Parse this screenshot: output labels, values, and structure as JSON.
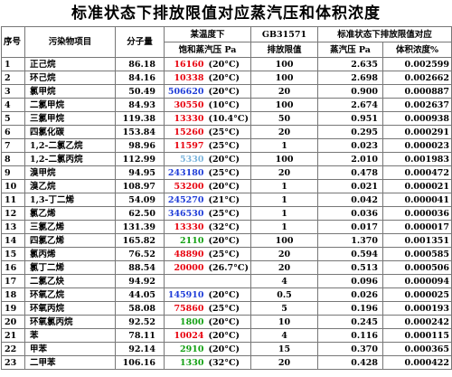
{
  "title": "标准状态下排放限值对应蒸汽压和体积浓度",
  "header": {
    "index": "序号",
    "pollutant": "污染物项目",
    "mw": "分子量",
    "vp_line1": "某温度下",
    "vp_line2": "饱和蒸汽压 Pa",
    "limit_line1": "GB31571",
    "limit_line2": "排放限值",
    "std_group": "标准状态下排放限值对应",
    "std_vp": "蒸汽压 Pa",
    "std_conc": "体积浓度%"
  },
  "colors": {
    "red": "#e8000d",
    "blue": "#1e3cd8",
    "green": "#12a012",
    "lightblue": "#7ab4dc",
    "black": "#000000"
  },
  "rows": [
    {
      "idx": "1",
      "name": "正己烷",
      "mw": "86.18",
      "pv": "16160",
      "pc": "red",
      "pt": "(20°C)",
      "lim": "100",
      "sp": "2.635",
      "cc": "0.002599"
    },
    {
      "idx": "2",
      "name": "环己烷",
      "mw": "84.16",
      "pv": "10338",
      "pc": "red",
      "pt": "(20°C)",
      "lim": "100",
      "sp": "2.698",
      "cc": "0.002662"
    },
    {
      "idx": "3",
      "name": "氯甲烷",
      "mw": "50.49",
      "pv": "506620",
      "pc": "blue",
      "pt": "(20°C)",
      "lim": "20",
      "sp": "0.900",
      "cc": "0.000887"
    },
    {
      "idx": "4",
      "name": "二氯甲烷",
      "mw": "84.93",
      "pv": "30550",
      "pc": "red",
      "pt": "(10°C)",
      "lim": "100",
      "sp": "2.674",
      "cc": "0.002637"
    },
    {
      "idx": "5",
      "name": "三氯甲烷",
      "mw": "119.38",
      "pv": "13330",
      "pc": "red",
      "pt": "(10.4°C)",
      "lim": "50",
      "sp": "0.951",
      "cc": "0.000938"
    },
    {
      "idx": "6",
      "name": "四氯化碳",
      "mw": "153.84",
      "pv": "15260",
      "pc": "red",
      "pt": "(25°C)",
      "lim": "20",
      "sp": "0.295",
      "cc": "0.000291"
    },
    {
      "idx": "7",
      "name": "1,2-二氯乙烷",
      "mw": "98.96",
      "pv": "11597",
      "pc": "red",
      "pt": "(25°C)",
      "lim": "1",
      "sp": "0.023",
      "cc": "0.000023"
    },
    {
      "idx": "8",
      "name": "1,2-二氯丙烷",
      "mw": "112.99",
      "pv": "5330",
      "pc": "lightblue",
      "pt": "(20°C)",
      "lim": "100",
      "sp": "2.010",
      "cc": "0.001983"
    },
    {
      "idx": "9",
      "name": "溴甲烷",
      "mw": "94.95",
      "pv": "243180",
      "pc": "blue",
      "pt": "(25°C)",
      "lim": "20",
      "sp": "0.478",
      "cc": "0.000472"
    },
    {
      "idx": "10",
      "name": "溴乙烷",
      "mw": "108.97",
      "pv": "53200",
      "pc": "red",
      "pt": "(20°C)",
      "lim": "1",
      "sp": "0.021",
      "cc": "0.000021"
    },
    {
      "idx": "11",
      "name": "1,3-丁二烯",
      "mw": "54.09",
      "pv": "245270",
      "pc": "blue",
      "pt": "(21°C)",
      "lim": "1",
      "sp": "0.042",
      "cc": "0.000041"
    },
    {
      "idx": "12",
      "name": "氯乙烯",
      "mw": "62.50",
      "pv": "346530",
      "pc": "blue",
      "pt": "(25°C)",
      "lim": "1",
      "sp": "0.036",
      "cc": "0.000036"
    },
    {
      "idx": "13",
      "name": "三氯乙烯",
      "mw": "131.39",
      "pv": "13330",
      "pc": "red",
      "pt": "(32°C)",
      "lim": "1",
      "sp": "0.017",
      "cc": "0.000017"
    },
    {
      "idx": "14",
      "name": "四氯乙烯",
      "mw": "165.82",
      "pv": "2110",
      "pc": "green",
      "pt": "(20°C)",
      "lim": "100",
      "sp": "1.370",
      "cc": "0.001351"
    },
    {
      "idx": "15",
      "name": "氯丙烯",
      "mw": "76.52",
      "pv": "48890",
      "pc": "red",
      "pt": "(25°C)",
      "lim": "20",
      "sp": "0.594",
      "cc": "0.000585"
    },
    {
      "idx": "16",
      "name": "氯丁二烯",
      "mw": "88.54",
      "pv": "20000",
      "pc": "red",
      "pt": "(26.7°C)",
      "lim": "20",
      "sp": "0.513",
      "cc": "0.000506"
    },
    {
      "idx": "17",
      "name": "二氯乙炔",
      "mw": "94.92",
      "pv": "",
      "pc": "black",
      "pt": "",
      "lim": "4",
      "sp": "0.096",
      "cc": "0.000094"
    },
    {
      "idx": "18",
      "name": "环氧乙烷",
      "mw": "44.05",
      "pv": "145910",
      "pc": "blue",
      "pt": "(20°C)",
      "lim": "0.5",
      "sp": "0.026",
      "cc": "0.000025"
    },
    {
      "idx": "19",
      "name": "环氧丙烷",
      "mw": "58.08",
      "pv": "75860",
      "pc": "red",
      "pt": "(25°C)",
      "lim": "5",
      "sp": "0.196",
      "cc": "0.000193"
    },
    {
      "idx": "20",
      "name": "环氧氯丙烷",
      "mw": "92.52",
      "pv": "1800",
      "pc": "green",
      "pt": "(20°C)",
      "lim": "10",
      "sp": "0.245",
      "cc": "0.000242"
    },
    {
      "idx": "21",
      "name": "苯",
      "mw": "78.11",
      "pv": "10024",
      "pc": "red",
      "pt": "(20°C)",
      "lim": "4",
      "sp": "0.116",
      "cc": "0.000115"
    },
    {
      "idx": "22",
      "name": "甲苯",
      "mw": "92.14",
      "pv": "2910",
      "pc": "green",
      "pt": "(20°C)",
      "lim": "15",
      "sp": "0.370",
      "cc": "0.000365"
    },
    {
      "idx": "23",
      "name": "二甲苯",
      "mw": "106.16",
      "pv": "1330",
      "pc": "green",
      "pt": "(32°C)",
      "lim": "20",
      "sp": "0.428",
      "cc": "0.000422"
    }
  ]
}
